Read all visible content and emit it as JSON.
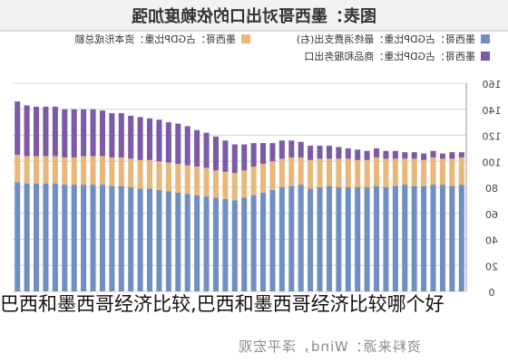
{
  "chart_data": {
    "type": "bar",
    "title": "图表：墨西哥对出口的依赖度加强",
    "source": "资料来源：Wind，泽平宏观",
    "ylim": [
      0,
      160
    ],
    "yticks": [
      0,
      20,
      40,
      60,
      80,
      100,
      120,
      140,
      160
    ],
    "y_axis_side": "right",
    "mirrored": true,
    "grid": true,
    "legend_position": "top",
    "series": [
      {
        "name": "墨西哥：占GDP比重：最终消费支出(右)",
        "color": "#6f8fc0",
        "values": [
          82,
          81,
          82,
          82,
          81,
          81,
          82,
          81,
          80,
          81,
          80,
          80,
          80,
          80,
          81,
          80,
          79,
          82,
          81,
          80,
          78,
          76,
          74,
          72,
          70,
          71,
          72,
          73,
          74,
          75,
          76,
          77,
          78,
          79,
          79,
          80,
          81,
          81,
          82,
          82,
          82,
          82,
          82,
          83,
          83,
          83,
          83,
          84
        ]
      },
      {
        "name": "墨西哥：占GDP比重：资本形成总额",
        "color": "#e8b87a",
        "values": [
          21,
          21,
          20,
          21,
          20,
          21,
          20,
          21,
          22,
          22,
          21,
          21,
          22,
          22,
          21,
          22,
          22,
          21,
          22,
          22,
          22,
          22,
          22,
          21,
          21,
          21,
          21,
          22,
          22,
          22,
          22,
          22,
          22,
          22,
          22,
          22,
          22,
          22,
          22,
          22,
          22,
          21,
          21,
          21,
          21,
          21,
          21,
          21
        ]
      },
      {
        "name": "墨西哥：占GDP比重：商品和服务出口",
        "color": "#7b5aa6",
        "values": [
          4,
          5,
          4,
          5,
          5,
          5,
          5,
          6,
          6,
          7,
          7,
          8,
          8,
          9,
          10,
          10,
          11,
          12,
          13,
          14,
          14,
          16,
          18,
          20,
          22,
          24,
          26,
          27,
          28,
          30,
          31,
          31,
          32,
          32,
          33,
          33,
          34,
          34,
          35,
          36,
          36,
          37,
          37,
          38,
          38,
          38,
          39,
          41
        ]
      }
    ]
  },
  "caption": "巴西和墨西哥经济比较,巴西和墨西哥经济比较哪个好"
}
